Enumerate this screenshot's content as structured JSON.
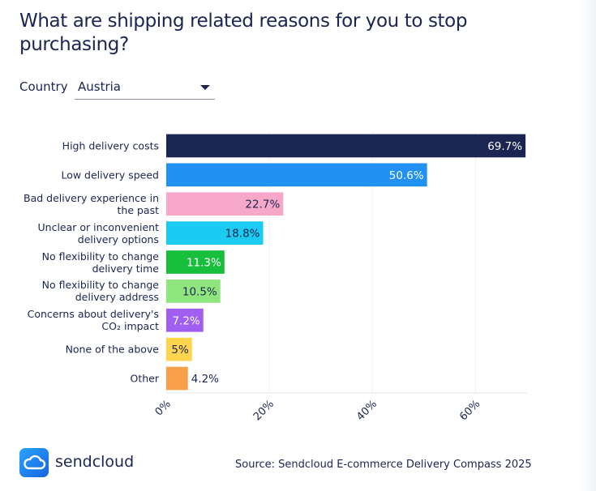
{
  "chart_data": {
    "type": "bar",
    "orientation": "horizontal",
    "title": "What are shipping related reasons for you to stop purchasing?",
    "filter": {
      "label": "Country",
      "value": "Austria"
    },
    "categories": [
      "High delivery costs",
      "Low delivery speed",
      "Bad delivery experience in\nthe past",
      "Unclear or inconvenient\ndelivery options",
      "No flexibility to change\ndelivery time",
      "No flexibility to change\ndelivery address",
      "Concerns about delivery's\nCO₂ impact",
      "None of the above",
      "Other"
    ],
    "values": [
      69.7,
      50.6,
      22.7,
      18.8,
      11.3,
      10.5,
      7.2,
      5,
      4.2
    ],
    "value_labels": [
      "69.7%",
      "50.6%",
      "22.7%",
      "18.8%",
      "11.3%",
      "10.5%",
      "7.2%",
      "5%",
      "4.2%"
    ],
    "colors": [
      "#1b2552",
      "#2191f3",
      "#f7a8c9",
      "#1ccbf1",
      "#18bf3c",
      "#8fe67f",
      "#a05ff0",
      "#ffd54d",
      "#f8a049"
    ],
    "xlim": [
      0,
      70
    ],
    "xticks": [
      {
        "value": 0,
        "label": "0%"
      },
      {
        "value": 20,
        "label": "20%"
      },
      {
        "value": 40,
        "label": "40%"
      },
      {
        "value": 60,
        "label": "60%"
      }
    ],
    "grid": true,
    "logo": "sendcloud",
    "source": "Source: Sendcloud E-commerce Delivery Compass 2025"
  }
}
